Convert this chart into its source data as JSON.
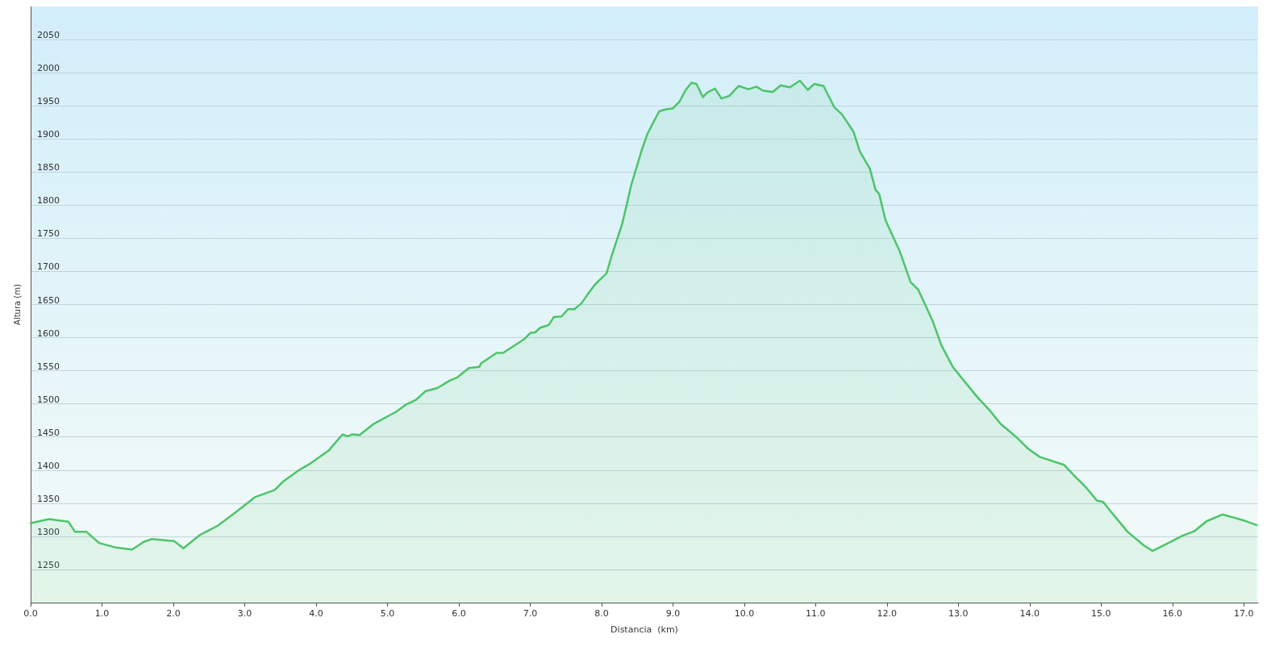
{
  "chart_data": {
    "type": "area",
    "xlabel": "Distancia  (km)",
    "ylabel": "Altura (m)",
    "x": [
      0,
      0.26,
      0.53,
      0.62,
      0.78,
      0.96,
      1.2,
      1.42,
      1.59,
      1.7,
      2.01,
      2.14,
      2.37,
      2.62,
      2.87,
      3.14,
      3.42,
      3.53,
      3.76,
      3.92,
      4.18,
      4.37,
      4.44,
      4.51,
      4.61,
      4.81,
      5.12,
      5.26,
      5.4,
      5.53,
      5.7,
      5.87,
      5.98,
      6.14,
      6.29,
      6.31,
      6.53,
      6.62,
      6.92,
      7.0,
      7.07,
      7.14,
      7.26,
      7.33,
      7.44,
      7.53,
      7.62,
      7.72,
      7.81,
      7.9,
      7.98,
      8.07,
      8.14,
      8.29,
      8.42,
      8.56,
      8.64,
      8.73,
      8.81,
      8.92,
      9.0,
      9.09,
      9.18,
      9.26,
      9.33,
      9.42,
      9.48,
      9.59,
      9.68,
      9.79,
      9.92,
      10.06,
      10.17,
      10.26,
      10.4,
      10.51,
      10.64,
      10.78,
      10.89,
      10.98,
      11.11,
      11.26,
      11.37,
      11.53,
      11.62,
      11.76,
      11.84,
      11.89,
      11.98,
      12.18,
      12.33,
      12.44,
      12.64,
      12.76,
      12.92,
      13.26,
      13.44,
      13.59,
      13.81,
      13.98,
      14.14,
      14.48,
      14.62,
      14.78,
      14.94,
      15.03,
      15.11,
      15.37,
      15.59,
      15.72,
      15.87,
      16.14,
      16.31,
      16.48,
      16.7,
      16.87,
      17.0,
      17.18
    ],
    "series": [
      {
        "color": "#4cc46a",
        "values": [
          1320,
          1326,
          1322,
          1307,
          1307,
          1290,
          1283,
          1280,
          1292,
          1296,
          1293,
          1282,
          1302,
          1316,
          1336,
          1359,
          1370,
          1382,
          1400,
          1410,
          1430,
          1454,
          1451,
          1454,
          1453,
          1470,
          1488,
          1499,
          1506,
          1519,
          1524,
          1535,
          1540,
          1554,
          1556,
          1561,
          1577,
          1577,
          1598,
          1607,
          1608,
          1615,
          1619,
          1631,
          1632,
          1643,
          1643,
          1652,
          1666,
          1679,
          1688,
          1697,
          1723,
          1772,
          1832,
          1882,
          1907,
          1926,
          1942,
          1945,
          1946,
          1956,
          1974,
          1985,
          1983,
          1963,
          1970,
          1976,
          1961,
          1965,
          1980,
          1975,
          1979,
          1973,
          1971,
          1981,
          1978,
          1988,
          1974,
          1983,
          1980,
          1948,
          1937,
          1911,
          1881,
          1855,
          1823,
          1817,
          1777,
          1730,
          1684,
          1672,
          1625,
          1589,
          1556,
          1511,
          1490,
          1470,
          1450,
          1432,
          1420,
          1408,
          1392,
          1375,
          1354,
          1352,
          1341,
          1307,
          1287,
          1278,
          1286,
          1301,
          1308,
          1323,
          1333,
          1328,
          1324,
          1317
        ]
      }
    ],
    "xlim": [
      0,
      17.2
    ],
    "xticks": [
      {
        "value": 0,
        "label": "0.0"
      },
      {
        "value": 1,
        "label": "1.0"
      },
      {
        "value": 2,
        "label": "2.0"
      },
      {
        "value": 3,
        "label": "3.0"
      },
      {
        "value": 4,
        "label": "4.0"
      },
      {
        "value": 5,
        "label": "5.0"
      },
      {
        "value": 6,
        "label": "6.0"
      },
      {
        "value": 7,
        "label": "7.0"
      },
      {
        "value": 8,
        "label": "8.0"
      },
      {
        "value": 9,
        "label": "9.0"
      },
      {
        "value": 10,
        "label": "10.0"
      },
      {
        "value": 11,
        "label": "11.0"
      },
      {
        "value": 12,
        "label": "12.0"
      },
      {
        "value": 13,
        "label": "13.0"
      },
      {
        "value": 14,
        "label": "14.0"
      },
      {
        "value": 15,
        "label": "15.0"
      },
      {
        "value": 16,
        "label": "16.0"
      },
      {
        "value": 17,
        "label": "17.0"
      }
    ],
    "ylim": [
      1200,
      2100
    ],
    "yticks": [
      1250,
      1300,
      1350,
      1400,
      1450,
      1500,
      1550,
      1600,
      1650,
      1700,
      1750,
      1800,
      1850,
      1900,
      1950,
      2000,
      2050
    ],
    "grid": "y",
    "marker": "none",
    "line_style": "solid"
  }
}
